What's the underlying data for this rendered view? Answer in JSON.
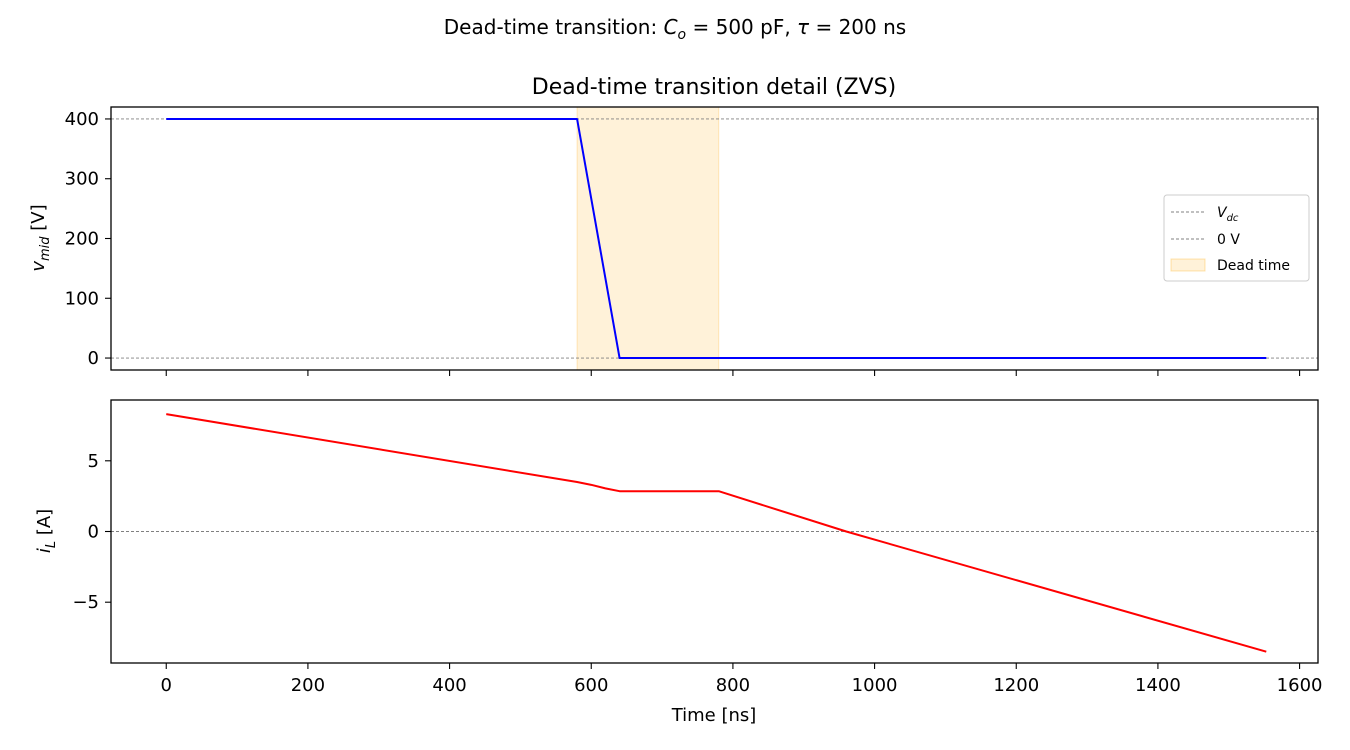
{
  "figure": {
    "suptitle_pre": "Dead-time transition: ",
    "suptitle_co": "C",
    "suptitle_co_sub": "o",
    "suptitle_mid": " = 500 pF, ",
    "suptitle_tau": "τ",
    "suptitle_post": " = 200 ns"
  },
  "chart_data": [
    {
      "type": "line",
      "title": "Dead-time transition detail (ZVS)",
      "ylabel_var": "v",
      "ylabel_sub": "mid",
      "ylabel_unit": " [V]",
      "xlim": [
        -78,
        1626
      ],
      "ylim": [
        -20,
        420
      ],
      "xticks": [
        0,
        200,
        400,
        600,
        800,
        1000,
        1200,
        1400,
        1600
      ],
      "yticks": [
        0,
        100,
        200,
        300,
        400
      ],
      "ytick_labels": [
        "0",
        "100",
        "200",
        "300",
        "400"
      ],
      "show_xtick_labels": false,
      "grid": false,
      "legend_position": "center-right",
      "series": [
        {
          "color": "#0000ff",
          "x": [
            0,
            580,
            640,
            1553
          ],
          "y": [
            400,
            400,
            0,
            0
          ]
        }
      ],
      "hlines": [
        {
          "y": 400,
          "color": "#808080",
          "style": "dashed"
        },
        {
          "y": 0,
          "color": "#808080",
          "style": "dashed"
        }
      ],
      "spans": [
        {
          "x0": 580,
          "x1": 780,
          "color": "#ffa500",
          "alpha": 0.15
        }
      ],
      "legend": [
        {
          "label_var": "V",
          "label_sub": "dc",
          "kind": "dashed",
          "color": "#808080"
        },
        {
          "label": "0 V",
          "kind": "dashed",
          "color": "#808080"
        },
        {
          "label": "Dead time",
          "kind": "patch",
          "color": "#ffa500"
        }
      ]
    },
    {
      "type": "line",
      "title": "",
      "ylabel_var": "i",
      "ylabel_sub": "L",
      "ylabel_unit": " [A]",
      "xlabel": "Time [ns]",
      "xlim": [
        -78,
        1626
      ],
      "ylim": [
        -9.3,
        9.3
      ],
      "xticks": [
        0,
        200,
        400,
        600,
        800,
        1000,
        1200,
        1400,
        1600
      ],
      "xtick_labels": [
        "0",
        "200",
        "400",
        "600",
        "800",
        "1000",
        "1200",
        "1400",
        "1600"
      ],
      "yticks": [
        -5,
        0,
        5
      ],
      "ytick_labels": [
        "−5",
        "0",
        "5"
      ],
      "show_xtick_labels": true,
      "grid": false,
      "series": [
        {
          "color": "#ff0000",
          "x": [
            0,
            580,
            600,
            620,
            640,
            780,
            960,
            1553
          ],
          "y": [
            8.3,
            3.5,
            3.3,
            3.05,
            2.85,
            2.85,
            0.0,
            -8.5
          ]
        }
      ],
      "hlines": [
        {
          "y": 0,
          "color": "#808080",
          "style": "dashed"
        }
      ]
    }
  ]
}
